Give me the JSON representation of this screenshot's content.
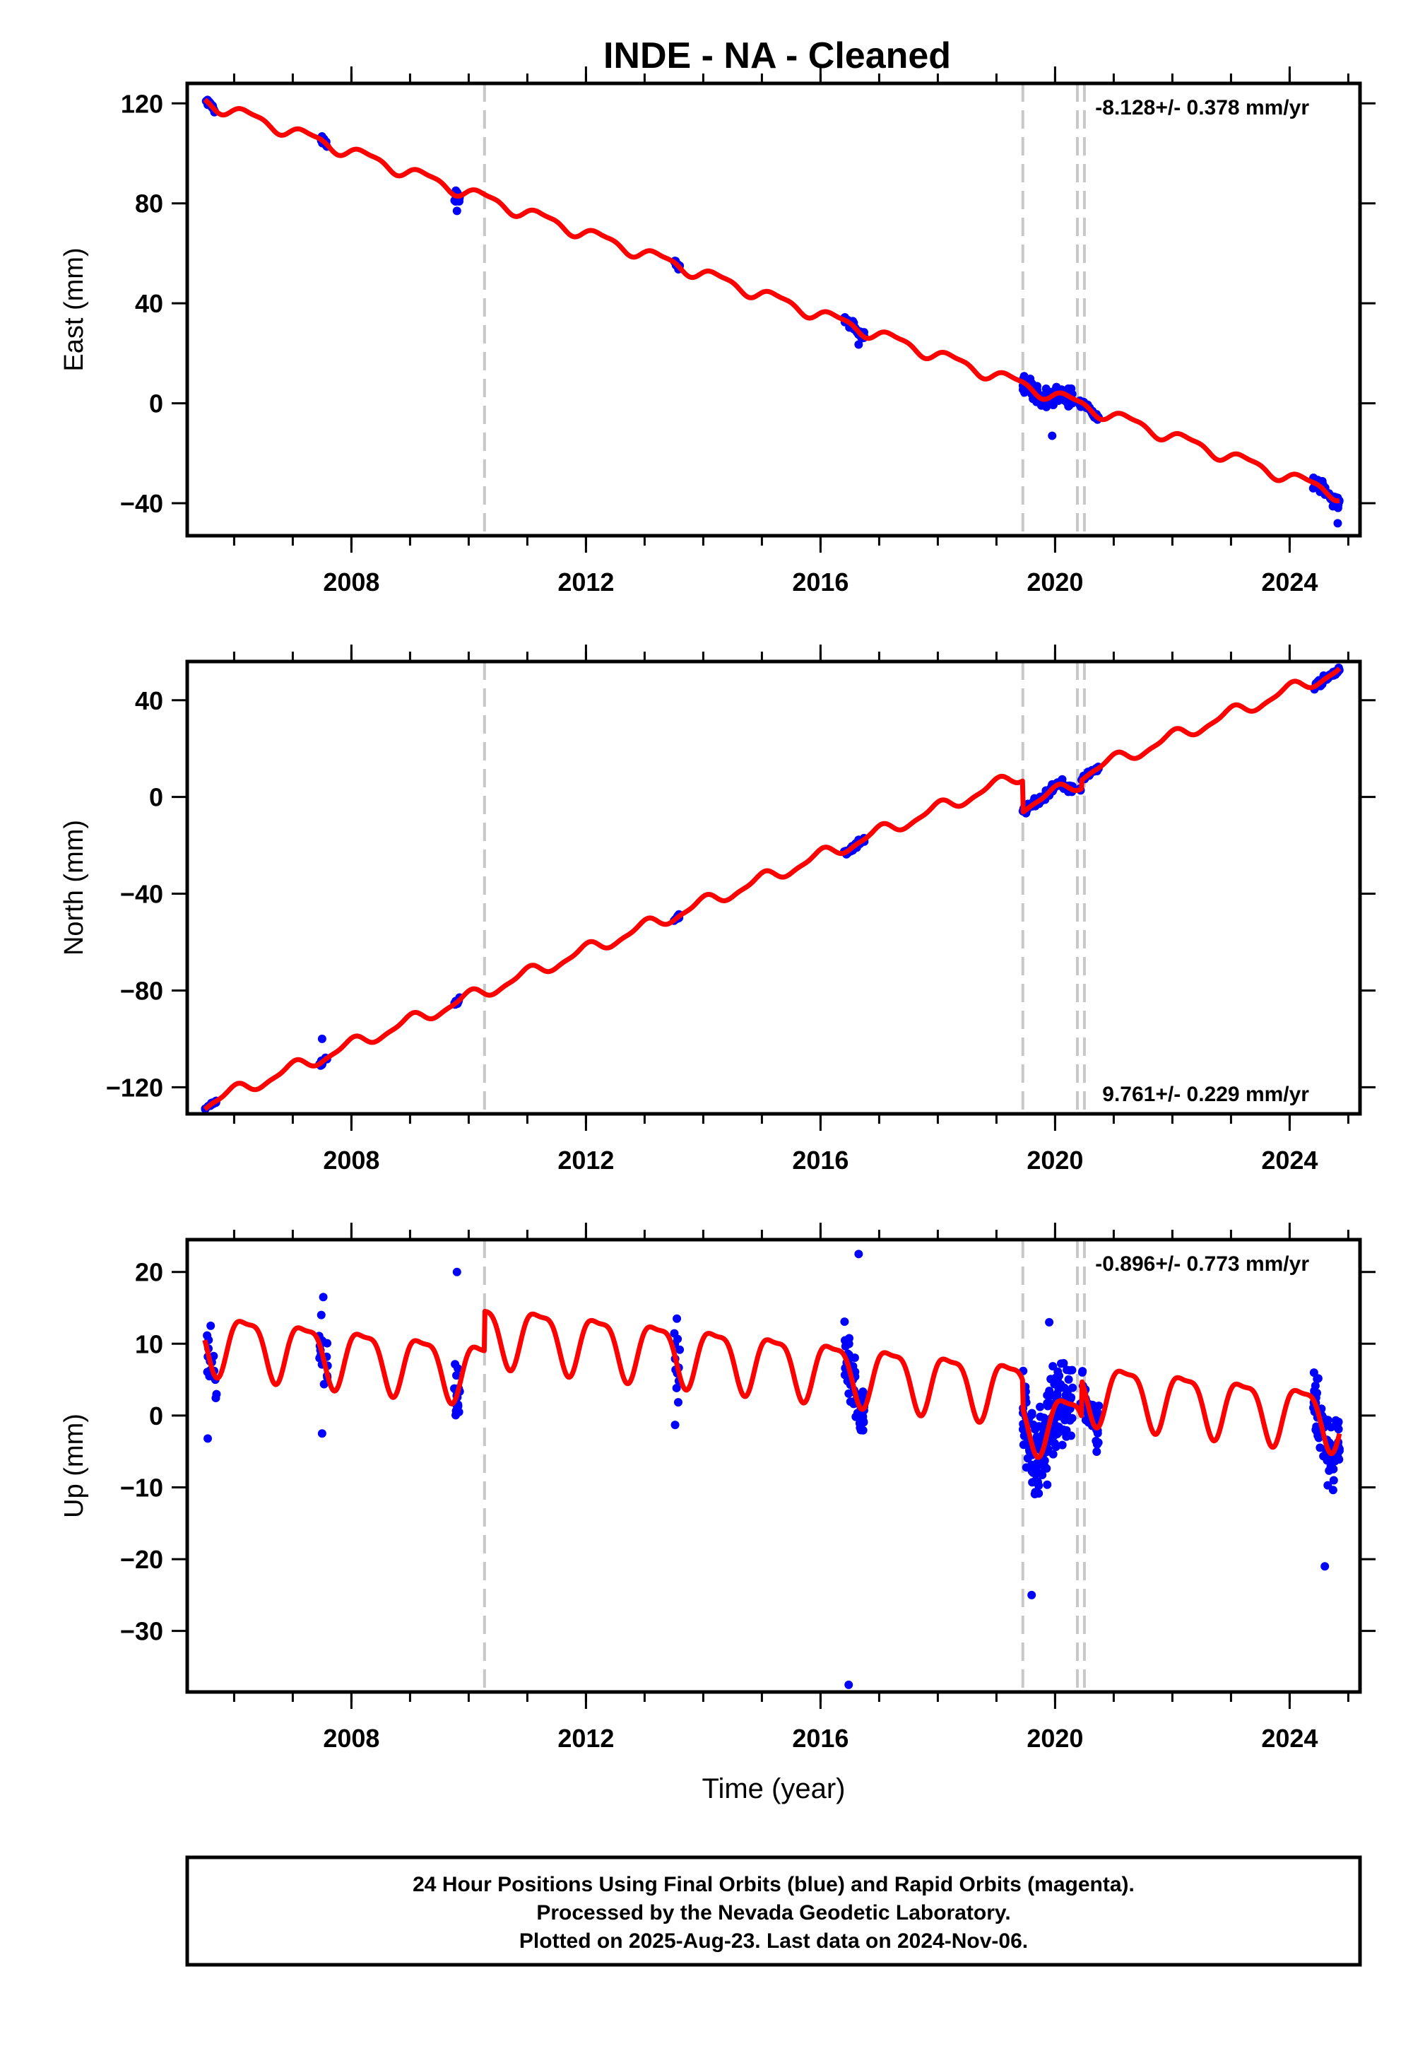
{
  "title": "INDE  - NA - Cleaned",
  "colors": {
    "final_orbits": "#0000ff",
    "model": "#ff0000",
    "offset_lines": "#c8c8c8"
  },
  "footer": {
    "line1": "24 Hour Positions Using Final Orbits (blue) and Rapid Orbits (magenta).",
    "line2": "Processed by the Nevada Geodetic Laboratory.",
    "line3": "Plotted on 2025-Aug-23. Last data on 2024-Nov-06."
  },
  "chart_data": [
    {
      "type": "scatter",
      "component": "East",
      "ylabel": "East (mm)",
      "xlabel": "",
      "xlim": [
        2005.2,
        2025.2
      ],
      "ylim": [
        -53,
        128
      ],
      "xticks": [
        2008,
        2012,
        2016,
        2020,
        2024
      ],
      "yticks": [
        -40,
        0,
        40,
        80,
        120
      ],
      "rate_label": "-8.128+/- 0.378 mm/yr",
      "rate": -8.128,
      "intercept": 120,
      "t0": 2005.6,
      "seasonal": {
        "ann_amp": 2.3,
        "ann_phase": 0.0,
        "semi_amp": 0.8,
        "semi_phase": 1.0
      },
      "steps": [],
      "offset_lines": [
        2010.27,
        2019.45,
        2020.38,
        2020.5
      ],
      "clusters": [
        {
          "start": 2005.5,
          "end": 2005.7,
          "n": 18,
          "noise": 1.2,
          "outliers": []
        },
        {
          "start": 2007.45,
          "end": 2007.6,
          "n": 14,
          "noise": 1.2,
          "outliers": []
        },
        {
          "start": 2009.75,
          "end": 2009.85,
          "n": 12,
          "noise": 2.5,
          "outliers": [
            [
              2009.8,
              77
            ]
          ]
        },
        {
          "start": 2013.5,
          "end": 2013.6,
          "n": 10,
          "noise": 1.0,
          "outliers": []
        },
        {
          "start": 2016.4,
          "end": 2016.75,
          "n": 45,
          "noise": 1.5,
          "outliers": [
            [
              2016.65,
              23.5
            ]
          ]
        },
        {
          "start": 2019.45,
          "end": 2020.3,
          "n": 130,
          "noise": 3.2,
          "outliers": [
            [
              2019.95,
              -13
            ]
          ]
        },
        {
          "start": 2020.42,
          "end": 2020.75,
          "n": 30,
          "noise": 1.5,
          "outliers": []
        },
        {
          "start": 2024.4,
          "end": 2024.85,
          "n": 70,
          "noise": 2.0,
          "outliers": [
            [
              2024.82,
              -48
            ]
          ]
        }
      ]
    },
    {
      "type": "scatter",
      "component": "North",
      "ylabel": "North (mm)",
      "xlabel": "",
      "xlim": [
        2005.2,
        2025.2
      ],
      "ylim": [
        -131,
        56
      ],
      "xticks": [
        2008,
        2012,
        2016,
        2020,
        2024
      ],
      "yticks": [
        -120,
        -80,
        -40,
        0,
        40
      ],
      "rate_label": "9.761+/- 0.229 mm/yr",
      "rate": 9.761,
      "intercept": -126,
      "t0": 2005.6,
      "seasonal": {
        "ann_amp": 2.5,
        "ann_phase": 1.6,
        "semi_amp": 0.8,
        "semi_phase": 0.5
      },
      "steps": [
        [
          2019.45,
          -13
        ],
        [
          2020.45,
          3.5
        ]
      ],
      "offset_lines": [
        2010.27,
        2019.45,
        2020.38,
        2020.5
      ],
      "clusters": [
        {
          "start": 2005.5,
          "end": 2005.7,
          "n": 15,
          "noise": 0.7,
          "outliers": []
        },
        {
          "start": 2007.45,
          "end": 2007.6,
          "n": 12,
          "noise": 1.2,
          "outliers": [
            [
              2007.5,
              -100
            ]
          ]
        },
        {
          "start": 2009.75,
          "end": 2009.85,
          "n": 10,
          "noise": 1.0,
          "outliers": []
        },
        {
          "start": 2013.5,
          "end": 2013.6,
          "n": 10,
          "noise": 1.0,
          "outliers": []
        },
        {
          "start": 2016.4,
          "end": 2016.75,
          "n": 40,
          "noise": 1.2,
          "outliers": []
        },
        {
          "start": 2019.45,
          "end": 2020.3,
          "n": 120,
          "noise": 1.6,
          "outliers": []
        },
        {
          "start": 2020.42,
          "end": 2020.75,
          "n": 30,
          "noise": 1.0,
          "outliers": []
        },
        {
          "start": 2024.4,
          "end": 2024.85,
          "n": 70,
          "noise": 1.3,
          "outliers": []
        }
      ]
    },
    {
      "type": "scatter",
      "component": "Up",
      "ylabel": "Up (mm)",
      "xlabel": "Time (year)",
      "xlim": [
        2005.2,
        2025.2
      ],
      "ylim": [
        -38.5,
        24.5
      ],
      "xticks": [
        2008,
        2012,
        2016,
        2020,
        2024
      ],
      "yticks": [
        -30,
        -20,
        -10,
        0,
        10,
        20
      ],
      "rate_label": "-0.896+/- 0.773 mm/yr",
      "rate": -0.896,
      "intercept": 10.5,
      "t0": 2005.6,
      "seasonal": {
        "ann_amp": 4.0,
        "ann_phase": 0.3,
        "semi_amp": 1.2,
        "semi_phase": 2.0
      },
      "steps": [
        [
          2010.27,
          5.5
        ],
        [
          2019.45,
          -4
        ],
        [
          2020.45,
          5
        ]
      ],
      "offset_lines": [
        2010.27,
        2019.45,
        2020.38,
        2020.5
      ],
      "clusters": [
        {
          "start": 2005.5,
          "end": 2005.7,
          "n": 16,
          "noise": 3.0,
          "outliers": [
            [
              2005.55,
              -3.2
            ],
            [
              2005.6,
              12.5
            ]
          ]
        },
        {
          "start": 2007.45,
          "end": 2007.6,
          "n": 16,
          "noise": 4.0,
          "outliers": [
            [
              2007.52,
              16.5
            ],
            [
              2007.5,
              -2.5
            ]
          ]
        },
        {
          "start": 2009.75,
          "end": 2009.85,
          "n": 16,
          "noise": 4.5,
          "outliers": [
            [
              2009.8,
              20
            ],
            [
              2009.82,
              1.3
            ]
          ]
        },
        {
          "start": 2013.5,
          "end": 2013.6,
          "n": 12,
          "noise": 3.5,
          "outliers": [
            [
              2013.55,
              13.5
            ],
            [
              2013.52,
              -1.3
            ]
          ]
        },
        {
          "start": 2016.4,
          "end": 2016.75,
          "n": 60,
          "noise": 3.5,
          "outliers": [
            [
              2016.65,
              22.5
            ],
            [
              2016.48,
              -37.5
            ]
          ]
        },
        {
          "start": 2019.45,
          "end": 2020.3,
          "n": 160,
          "noise": 5.5,
          "outliers": [
            [
              2019.6,
              -25
            ],
            [
              2019.9,
              13
            ]
          ]
        },
        {
          "start": 2020.42,
          "end": 2020.75,
          "n": 40,
          "noise": 3.5,
          "outliers": []
        },
        {
          "start": 2024.4,
          "end": 2024.85,
          "n": 80,
          "noise": 4.5,
          "outliers": [
            [
              2024.6,
              -21
            ]
          ]
        }
      ]
    }
  ]
}
